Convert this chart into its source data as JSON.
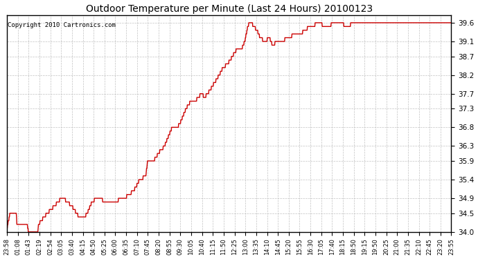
{
  "title": "Outdoor Temperature per Minute (Last 24 Hours) 20100123",
  "copyright_text": "Copyright 2010 Cartronics.com",
  "line_color": "#cc0000",
  "background_color": "#ffffff",
  "plot_bg_color": "#ffffff",
  "grid_color": "#bbbbbb",
  "ylim": [
    34.0,
    39.8
  ],
  "yticks": [
    34.0,
    34.5,
    34.9,
    35.4,
    35.9,
    36.3,
    36.8,
    37.3,
    37.7,
    38.2,
    38.7,
    39.1,
    39.6
  ],
  "x_tick_labels": [
    "23:58",
    "01:08",
    "01:43",
    "02:19",
    "02:54",
    "03:05",
    "03:40",
    "04:15",
    "04:50",
    "05:25",
    "06:00",
    "06:35",
    "07:10",
    "07:45",
    "08:20",
    "08:55",
    "09:30",
    "10:05",
    "10:40",
    "11:15",
    "11:50",
    "12:25",
    "13:00",
    "13:35",
    "14:10",
    "14:45",
    "15:20",
    "15:55",
    "16:30",
    "17:05",
    "17:40",
    "18:15",
    "18:50",
    "19:15",
    "19:50",
    "20:25",
    "21:00",
    "21:35",
    "22:10",
    "22:45",
    "23:20",
    "23:55"
  ],
  "keypoints": [
    [
      0,
      34.1
    ],
    [
      10,
      34.5
    ],
    [
      30,
      34.5
    ],
    [
      32,
      34.2
    ],
    [
      65,
      34.2
    ],
    [
      70,
      34.0
    ],
    [
      100,
      34.0
    ],
    [
      102,
      34.2
    ],
    [
      130,
      34.5
    ],
    [
      155,
      34.7
    ],
    [
      165,
      34.8
    ],
    [
      175,
      34.9
    ],
    [
      185,
      34.9
    ],
    [
      195,
      34.8
    ],
    [
      210,
      34.7
    ],
    [
      225,
      34.5
    ],
    [
      235,
      34.4
    ],
    [
      250,
      34.4
    ],
    [
      260,
      34.5
    ],
    [
      275,
      34.8
    ],
    [
      290,
      34.9
    ],
    [
      305,
      34.9
    ],
    [
      315,
      34.8
    ],
    [
      330,
      34.8
    ],
    [
      340,
      34.8
    ],
    [
      380,
      34.9
    ],
    [
      410,
      35.1
    ],
    [
      430,
      35.4
    ],
    [
      450,
      35.5
    ],
    [
      455,
      35.9
    ],
    [
      465,
      35.9
    ],
    [
      470,
      35.9
    ],
    [
      475,
      35.9
    ],
    [
      490,
      36.1
    ],
    [
      510,
      36.3
    ],
    [
      520,
      36.5
    ],
    [
      535,
      36.8
    ],
    [
      550,
      36.8
    ],
    [
      560,
      36.9
    ],
    [
      570,
      37.1
    ],
    [
      580,
      37.3
    ],
    [
      595,
      37.5
    ],
    [
      610,
      37.5
    ],
    [
      620,
      37.6
    ],
    [
      630,
      37.7
    ],
    [
      640,
      37.6
    ],
    [
      650,
      37.7
    ],
    [
      665,
      37.9
    ],
    [
      680,
      38.1
    ],
    [
      700,
      38.4
    ],
    [
      715,
      38.5
    ],
    [
      730,
      38.7
    ],
    [
      745,
      38.9
    ],
    [
      760,
      38.9
    ],
    [
      770,
      39.1
    ],
    [
      775,
      39.3
    ],
    [
      780,
      39.5
    ],
    [
      785,
      39.6
    ],
    [
      790,
      39.6
    ],
    [
      800,
      39.5
    ],
    [
      810,
      39.4
    ],
    [
      820,
      39.2
    ],
    [
      835,
      39.1
    ],
    [
      850,
      39.2
    ],
    [
      855,
      39.1
    ],
    [
      860,
      39.0
    ],
    [
      875,
      39.1
    ],
    [
      890,
      39.1
    ],
    [
      910,
      39.2
    ],
    [
      935,
      39.3
    ],
    [
      950,
      39.3
    ],
    [
      965,
      39.4
    ],
    [
      980,
      39.5
    ],
    [
      990,
      39.5
    ],
    [
      1005,
      39.6
    ],
    [
      1015,
      39.6
    ],
    [
      1025,
      39.5
    ],
    [
      1040,
      39.5
    ],
    [
      1060,
      39.6
    ],
    [
      1080,
      39.6
    ],
    [
      1100,
      39.5
    ],
    [
      1110,
      39.5
    ],
    [
      1115,
      39.6
    ],
    [
      1130,
      39.6
    ],
    [
      1150,
      39.6
    ],
    [
      1170,
      39.6
    ],
    [
      1190,
      39.6
    ],
    [
      1210,
      39.6
    ],
    [
      1230,
      39.6
    ],
    [
      1250,
      39.6
    ],
    [
      1270,
      39.6
    ],
    [
      1290,
      39.6
    ],
    [
      1310,
      39.6
    ],
    [
      1330,
      39.6
    ],
    [
      1350,
      39.6
    ],
    [
      1370,
      39.6
    ],
    [
      1390,
      39.6
    ],
    [
      1410,
      39.6
    ],
    [
      1430,
      39.6
    ],
    [
      1439,
      39.6
    ]
  ]
}
